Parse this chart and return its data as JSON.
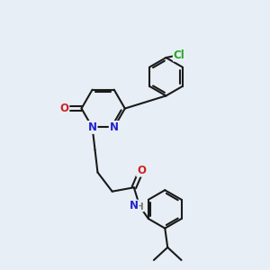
{
  "bg_color": "#e8eef5",
  "bond_color": "#1a1a1a",
  "bond_width": 1.5,
  "atom_colors": {
    "N": "#2222cc",
    "O": "#cc2222",
    "Cl": "#22aa22",
    "H": "#777777"
  },
  "font_size": 8.5
}
